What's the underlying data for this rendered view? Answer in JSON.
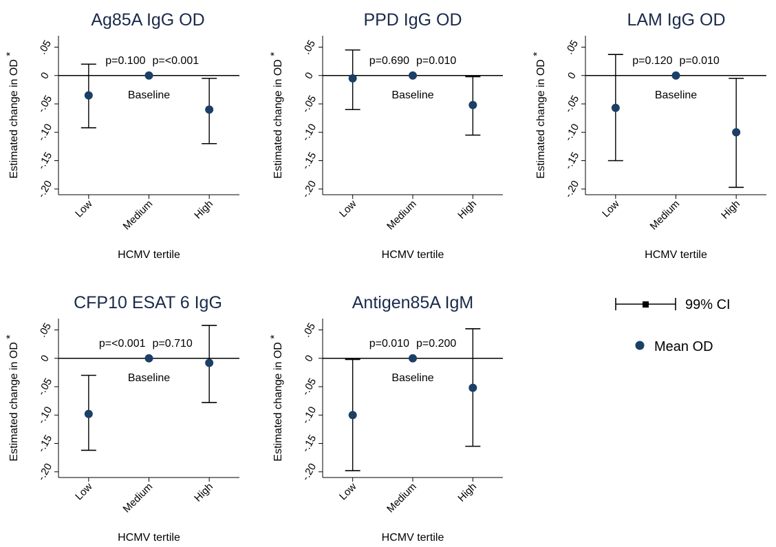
{
  "colors": {
    "marker": "#1c3f66",
    "title": "#1a2a4a",
    "line": "#000000"
  },
  "chart_data": [
    {
      "type": "scatter",
      "title": "Ag85A IgG OD",
      "xlabel": "HCMV tertile",
      "ylabel": "Estimated change in OD",
      "ylabel_mark": "*",
      "categories": [
        "Low",
        "Medium",
        "High"
      ],
      "yticks": [
        ".05",
        "0",
        "-.05",
        "-.10",
        "-.15",
        "-.20"
      ],
      "ylim": [
        -0.21,
        0.07
      ],
      "values": [
        -0.035,
        0.0,
        -0.06
      ],
      "ci": [
        [
          -0.092,
          0.02
        ],
        null,
        [
          -0.12,
          -0.005
        ]
      ],
      "pvalues": [
        "p=0.100",
        "p=<0.001"
      ],
      "baseline_label": "Baseline"
    },
    {
      "type": "scatter",
      "title": "PPD IgG OD",
      "xlabel": "HCMV tertile",
      "ylabel": "Estimated change in OD",
      "ylabel_mark": "*",
      "categories": [
        "Low",
        "Medium",
        "High"
      ],
      "yticks": [
        ".05",
        "0",
        "-.05",
        "-.10",
        "-.15",
        "-.20"
      ],
      "ylim": [
        -0.21,
        0.07
      ],
      "values": [
        -0.005,
        0.0,
        -0.052
      ],
      "ci": [
        [
          -0.06,
          0.045
        ],
        null,
        [
          -0.105,
          -0.002
        ]
      ],
      "pvalues": [
        "p=0.690",
        "p=0.010"
      ],
      "baseline_label": "Baseline"
    },
    {
      "type": "scatter",
      "title": "LAM IgG OD",
      "xlabel": "HCMV tertile",
      "ylabel": "Estimated change in OD",
      "ylabel_mark": "*",
      "categories": [
        "Low",
        "Medium",
        "High"
      ],
      "yticks": [
        ".05",
        "0",
        "-.05",
        "-.10",
        "-.15",
        "-.20"
      ],
      "ylim": [
        -0.21,
        0.07
      ],
      "values": [
        -0.057,
        0.0,
        -0.1
      ],
      "ci": [
        [
          -0.15,
          0.037
        ],
        null,
        [
          -0.197,
          -0.005
        ]
      ],
      "pvalues": [
        "p=0.120",
        "p=0.010"
      ],
      "baseline_label": "Baseline"
    },
    {
      "type": "scatter",
      "title": "CFP10 ESAT 6 IgG",
      "xlabel": "HCMV tertile",
      "ylabel": "Estimated change in OD",
      "ylabel_mark": "*",
      "categories": [
        "Low",
        "Medium",
        "High"
      ],
      "yticks": [
        ".05",
        "0",
        "-.05",
        "-.10",
        "-.15",
        "-.20"
      ],
      "ylim": [
        -0.21,
        0.07
      ],
      "values": [
        -0.098,
        0.0,
        -0.008
      ],
      "ci": [
        [
          -0.162,
          -0.03
        ],
        null,
        [
          -0.078,
          0.058
        ]
      ],
      "pvalues": [
        "p=<0.001",
        "p=0.710"
      ],
      "baseline_label": "Baseline"
    },
    {
      "type": "scatter",
      "title": "Antigen85A IgM",
      "xlabel": "HCMV tertile",
      "ylabel": "Estimated change in OD",
      "ylabel_mark": "*",
      "categories": [
        "Low",
        "Medium",
        "High"
      ],
      "yticks": [
        ".05",
        "0",
        "-.05",
        "-.10",
        "-.15",
        "-.20"
      ],
      "ylim": [
        -0.21,
        0.07
      ],
      "values": [
        -0.1,
        0.0,
        -0.052
      ],
      "ci": [
        [
          -0.198,
          -0.002
        ],
        null,
        [
          -0.155,
          0.052
        ]
      ],
      "pvalues": [
        "p=0.010",
        "p=0.200"
      ],
      "baseline_label": "Baseline"
    }
  ],
  "legend": {
    "ci_label": "99% CI",
    "mean_label": "Mean OD"
  }
}
